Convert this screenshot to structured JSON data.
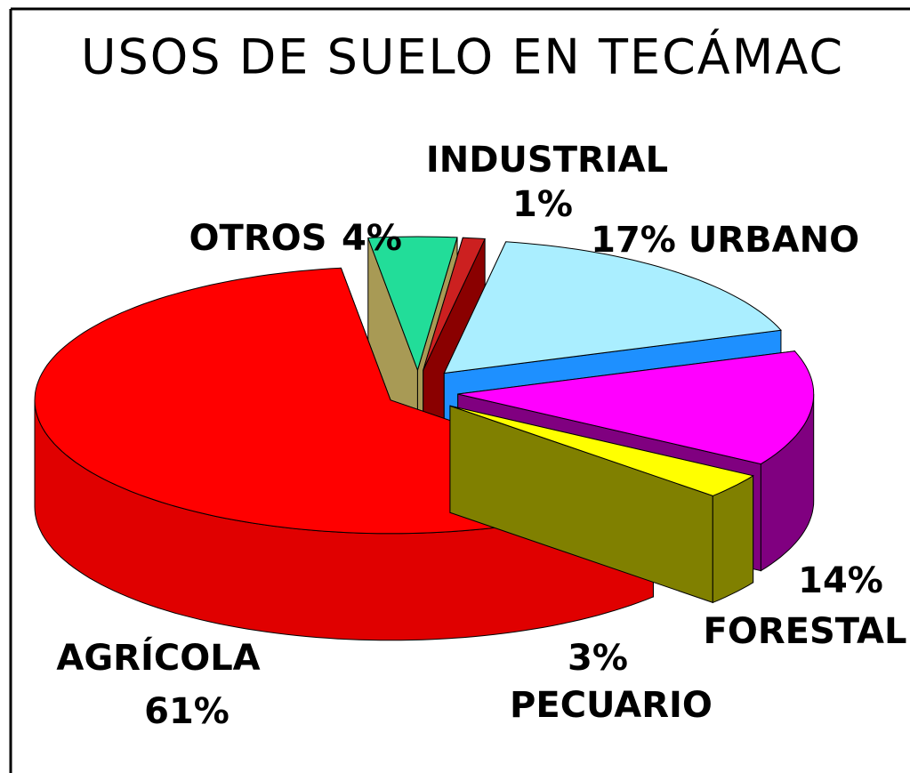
{
  "chart_data": {
    "type": "pie3d",
    "title": "USOS DE SUELO EN TECÁMAC",
    "categories": [
      "OTROS",
      "INDUSTRIAL",
      "URBANO",
      "FORESTAL",
      "PECUARIO",
      "AGRÍCOLA"
    ],
    "values": [
      4,
      1,
      17,
      14,
      3,
      61
    ],
    "value_labels": [
      "4%",
      "1%",
      "17%",
      "14%",
      "3%",
      "61%"
    ],
    "colors": [
      "#22dd99",
      "#cc2020",
      "#aaeeff",
      "#ff00ff",
      "#ffff00",
      "#ff0000"
    ],
    "side_colors": [
      "#a89a55",
      "#8a0000",
      "#1e90ff",
      "#800080",
      "#808000",
      "#e00000"
    ]
  }
}
